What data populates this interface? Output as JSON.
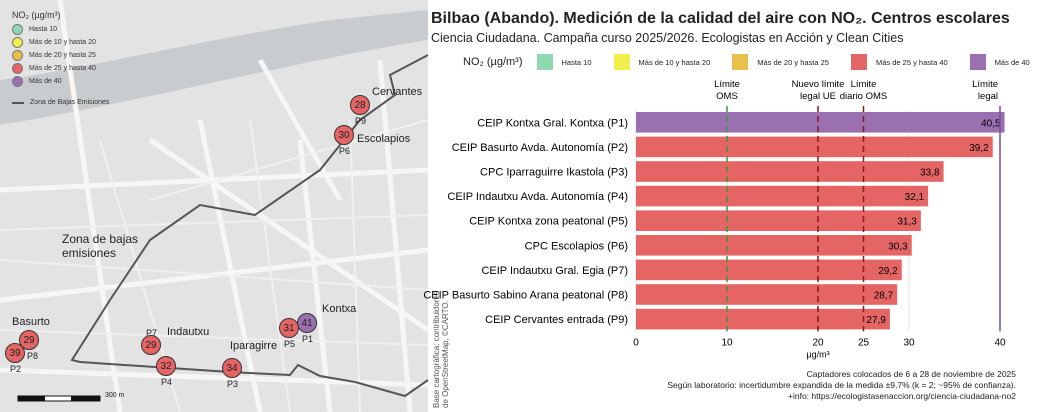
{
  "map": {
    "legend": {
      "title": "NO₂ (µg/m³)",
      "items": [
        {
          "label": "Hasta 10",
          "color": "#8fd9b0"
        },
        {
          "label": "Más de 10 y hasta 20",
          "color": "#f1ee4d"
        },
        {
          "label": "Más de 20 y hasta 25",
          "color": "#e8c14c"
        },
        {
          "label": "Más de 25 y hasta 40",
          "color": "#e56464"
        },
        {
          "label": "Más de 40",
          "color": "#9a70b0"
        }
      ],
      "zone_label": "Zona de Bajas Emisiones"
    },
    "zone_text": "Zona de bajas emisiones",
    "areas": [
      "Cervantes",
      "Escolapios",
      "Kontxa",
      "Basurto",
      "Indautxu",
      "Iparagirre"
    ],
    "markers": [
      {
        "id": "P1",
        "value": "41",
        "color": "#9a70b0"
      },
      {
        "id": "P2",
        "value": "39",
        "color": "#e56464"
      },
      {
        "id": "P3",
        "value": "34",
        "color": "#e56464"
      },
      {
        "id": "P4",
        "value": "32",
        "color": "#e56464"
      },
      {
        "id": "P5",
        "value": "31",
        "color": "#e56464"
      },
      {
        "id": "P6",
        "value": "30",
        "color": "#e56464"
      },
      {
        "id": "P7",
        "value": "29",
        "color": "#e56464"
      },
      {
        "id": "P8",
        "value": "29",
        "color": "#e56464"
      },
      {
        "id": "P9",
        "value": "28",
        "color": "#e56464"
      }
    ],
    "scale_label": "300 m",
    "attribution": "Base cartográfica: contribuidores de OpenStreetMap, ©CARTO."
  },
  "chart_data": {
    "type": "bar",
    "orientation": "horizontal",
    "title": "Bilbao (Abando). Medición de la calidad del aire con NO₂. Centros escolares",
    "subtitle": "Ciencia Ciudadana. Campaña curso 2025/2026. Ecologistas en Acción y Clean Cities",
    "legend_title": "NO₂ (µg/m³)",
    "categories": [
      "CEIP Kontxa Gral. Kontxa (P1)",
      "CEIP Basurto Avda. Autonomía (P2)",
      "CPC Iparraguirre Ikastola (P3)",
      "CEIP Indautxu Avda. Autonomía (P4)",
      "CEIP Kontxa zona peatonal (P5)",
      "CPC Escolapios (P6)",
      "CEIP Indautxu Gral. Egia (P7)",
      "CEIP Basurto Sabino Arana peatonal (P8)",
      "CEIP Cervantes entrada (P9)"
    ],
    "values": [
      40.5,
      39.2,
      33.8,
      32.1,
      31.3,
      30.3,
      29.2,
      28.7,
      27.9
    ],
    "value_labels": [
      "40,5",
      "39,2",
      "33,8",
      "32,1",
      "31,3",
      "30,3",
      "29,2",
      "28,7",
      "27,9"
    ],
    "xlabel": "µg/m³",
    "xlim": [
      0,
      40.5
    ],
    "xticks": [
      0,
      10,
      20,
      25,
      30,
      40
    ],
    "grid": true,
    "reference_lines": [
      {
        "value": 10,
        "label1": "Límite",
        "label2": "OMS",
        "color": "#3a9a3a",
        "style": "dashed"
      },
      {
        "value": 20,
        "label1": "Nuevo límite",
        "label2": "legal UE",
        "color": "#8b1a1a",
        "style": "dashed"
      },
      {
        "value": 25,
        "label1": "Límite",
        "label2": "diario OMS",
        "color": "#8b1a1a",
        "style": "dashed"
      },
      {
        "value": 40,
        "label1": "Límite",
        "label2": "legal",
        "color": "#7a4f99",
        "style": "solid"
      }
    ],
    "colors": {
      "over40": "#9a70b0",
      "25to40": "#e56464"
    }
  },
  "footer": [
    "Captadores colocados de 6 a 28 de noviembre de 2025",
    "Según laboratorio: incertidumbre expandida de la medida ±9,7% (k = 2; ~95% de confianza).",
    "+info: https://ecologistasenaccion.org/ciencia-ciudadana-no2"
  ]
}
